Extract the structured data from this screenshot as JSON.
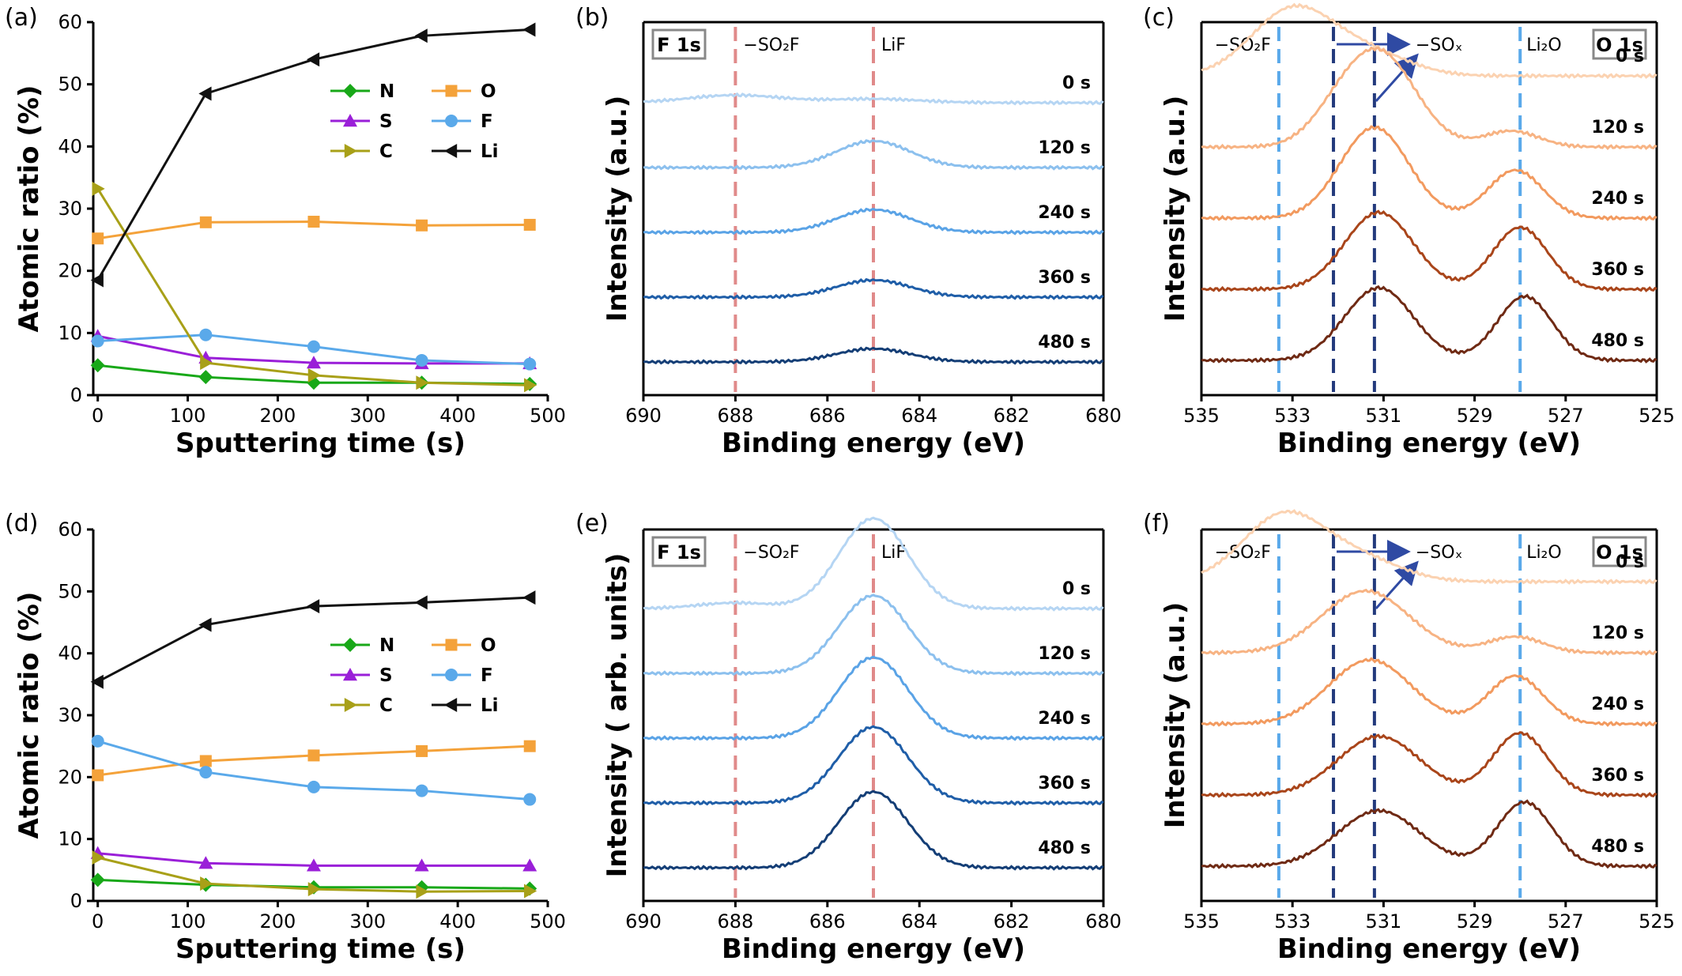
{
  "chart_data": [
    {
      "id": "a",
      "panel_label": "(a)",
      "type": "line",
      "xlabel": "Sputtering time (s)",
      "ylabel": "Atomic ratio (%)",
      "xlim": [
        -5,
        500
      ],
      "ylim": [
        0,
        60
      ],
      "xticks": [
        0,
        100,
        200,
        300,
        400,
        500
      ],
      "yticks": [
        0,
        10,
        20,
        30,
        40,
        50,
        60
      ],
      "x": [
        0,
        120,
        240,
        360,
        480
      ],
      "legend_position": "upper-right",
      "series": [
        {
          "name": "N",
          "color": "#18a818",
          "marker": "diamond",
          "values": [
            4.8,
            2.9,
            2.0,
            2.0,
            1.8
          ]
        },
        {
          "name": "O",
          "color": "#f4a23a",
          "marker": "square",
          "values": [
            25.2,
            27.8,
            27.9,
            27.3,
            27.4
          ]
        },
        {
          "name": "S",
          "color": "#9a1fd8",
          "marker": "triangle-up",
          "values": [
            9.5,
            6.0,
            5.2,
            5.1,
            5.1
          ]
        },
        {
          "name": "F",
          "color": "#5aa9ea",
          "marker": "circle",
          "values": [
            8.7,
            9.7,
            7.8,
            5.6,
            5.0
          ]
        },
        {
          "name": "C",
          "color": "#a8a018",
          "marker": "triangle-right",
          "values": [
            33.2,
            5.2,
            3.2,
            2.0,
            1.6
          ]
        },
        {
          "name": "Li",
          "color": "#111111",
          "marker": "triangle-left",
          "values": [
            18.5,
            48.5,
            54.0,
            57.8,
            58.8
          ]
        }
      ]
    },
    {
      "id": "b",
      "panel_label": "(b)",
      "type": "line",
      "xlabel": "Binding energy (eV)",
      "ylabel": "Intensity (a.u.)",
      "box_label": "F 1s",
      "xlim": [
        690,
        680
      ],
      "xticks": [
        690,
        688,
        686,
        684,
        682,
        680
      ],
      "reference_lines": [
        {
          "x": 688.0,
          "label": "−SO₂F",
          "color": "#e08a8a"
        },
        {
          "x": 685.0,
          "label": "LiF",
          "color": "#e08a8a"
        }
      ],
      "spectra": [
        {
          "name": "0 s",
          "color": "#b5d5f3",
          "offset": 4,
          "peaks": [
            {
              "center": 688.0,
              "height": 0.08,
              "width": 1.0
            },
            {
              "center": 685.0,
              "height": 0.04,
              "width": 1.0
            }
          ]
        },
        {
          "name": "120 s",
          "color": "#8cc0ee",
          "offset": 3,
          "peaks": [
            {
              "center": 685.0,
              "height": 0.28,
              "width": 0.8
            }
          ]
        },
        {
          "name": "240 s",
          "color": "#5aa3e6",
          "offset": 2,
          "peaks": [
            {
              "center": 685.0,
              "height": 0.24,
              "width": 0.8
            }
          ]
        },
        {
          "name": "360 s",
          "color": "#1f5ea8",
          "offset": 1,
          "peaks": [
            {
              "center": 685.0,
              "height": 0.18,
              "width": 0.8
            }
          ]
        },
        {
          "name": "480 s",
          "color": "#143e76",
          "offset": 0,
          "peaks": [
            {
              "center": 685.0,
              "height": 0.14,
              "width": 0.8
            }
          ]
        }
      ]
    },
    {
      "id": "c",
      "panel_label": "(c)",
      "type": "line",
      "xlabel": "Binding energy (eV)",
      "ylabel": "Intensity (a.u.)",
      "box_label": "O 1s",
      "xlim": [
        535,
        525
      ],
      "xticks": [
        535,
        533,
        531,
        529,
        527,
        525
      ],
      "reference_lines": [
        {
          "x": 533.3,
          "label": "−SO₂F",
          "color": "#5aa9ea"
        },
        {
          "x": 532.1,
          "label": "",
          "color": "#233a7c"
        },
        {
          "x": 531.2,
          "label": "−SOₓ",
          "color": "#233a7c"
        },
        {
          "x": 528.0,
          "label": "Li₂O",
          "color": "#5aa9ea"
        }
      ],
      "spectra": [
        {
          "name": "0 s",
          "color": "#fbd2b1",
          "offset": 4,
          "peaks": [
            {
              "center": 533.0,
              "height": 0.62,
              "width": 0.9
            },
            {
              "center": 531.3,
              "height": 0.2,
              "width": 0.9
            }
          ]
        },
        {
          "name": "120 s",
          "color": "#f7b383",
          "offset": 3,
          "peaks": [
            {
              "center": 531.1,
              "height": 0.88,
              "width": 0.8
            },
            {
              "center": 532.1,
              "height": 0.15,
              "width": 0.6
            },
            {
              "center": 528.2,
              "height": 0.15,
              "width": 0.6
            }
          ]
        },
        {
          "name": "240 s",
          "color": "#f29a5f",
          "offset": 2,
          "peaks": [
            {
              "center": 531.2,
              "height": 0.85,
              "width": 0.75
            },
            {
              "center": 528.1,
              "height": 0.45,
              "width": 0.6
            }
          ]
        },
        {
          "name": "360 s",
          "color": "#a9451a",
          "offset": 1,
          "peaks": [
            {
              "center": 531.1,
              "height": 0.72,
              "width": 0.75
            },
            {
              "center": 528.0,
              "height": 0.58,
              "width": 0.6
            }
          ]
        },
        {
          "name": "480 s",
          "color": "#6f2a14",
          "offset": 0,
          "peaks": [
            {
              "center": 531.1,
              "height": 0.68,
              "width": 0.75
            },
            {
              "center": 527.9,
              "height": 0.6,
              "width": 0.6
            }
          ]
        }
      ]
    },
    {
      "id": "d",
      "panel_label": "(d)",
      "type": "line",
      "xlabel": "Sputtering time (s)",
      "ylabel": "Atomic ratio (%)",
      "xlim": [
        -5,
        500
      ],
      "ylim": [
        0,
        60
      ],
      "xticks": [
        0,
        100,
        200,
        300,
        400,
        500
      ],
      "yticks": [
        0,
        10,
        20,
        30,
        40,
        50,
        60
      ],
      "x": [
        0,
        120,
        240,
        360,
        480
      ],
      "legend_position": "right",
      "series": [
        {
          "name": "N",
          "color": "#18a818",
          "marker": "diamond",
          "values": [
            3.4,
            2.6,
            2.2,
            2.2,
            2.0
          ]
        },
        {
          "name": "O",
          "color": "#f4a23a",
          "marker": "square",
          "values": [
            20.3,
            22.6,
            23.5,
            24.2,
            25.0
          ]
        },
        {
          "name": "S",
          "color": "#9a1fd8",
          "marker": "triangle-up",
          "values": [
            7.7,
            6.1,
            5.7,
            5.7,
            5.7
          ]
        },
        {
          "name": "F",
          "color": "#5aa9ea",
          "marker": "circle",
          "values": [
            25.8,
            20.8,
            18.4,
            17.8,
            16.4
          ]
        },
        {
          "name": "C",
          "color": "#a8a018",
          "marker": "triangle-right",
          "values": [
            7.0,
            2.8,
            1.9,
            1.5,
            1.6
          ]
        },
        {
          "name": "Li",
          "color": "#111111",
          "marker": "triangle-left",
          "values": [
            35.4,
            44.6,
            47.6,
            48.2,
            49.0
          ]
        }
      ]
    },
    {
      "id": "e",
      "panel_label": "(e)",
      "type": "line",
      "xlabel": "Binding energy (eV)",
      "ylabel": "Intensity ( arb. units)",
      "box_label": "F 1s",
      "xlim": [
        690,
        680
      ],
      "xticks": [
        690,
        688,
        686,
        684,
        682,
        680
      ],
      "reference_lines": [
        {
          "x": 688.0,
          "label": "−SO₂F",
          "color": "#e08a8a"
        },
        {
          "x": 685.0,
          "label": "LiF",
          "color": "#e08a8a"
        }
      ],
      "spectra": [
        {
          "name": "0 s",
          "color": "#b5d5f3",
          "offset": 4,
          "peaks": [
            {
              "center": 685.0,
              "height": 0.95,
              "width": 0.75
            },
            {
              "center": 688.0,
              "height": 0.06,
              "width": 0.8
            }
          ]
        },
        {
          "name": "120 s",
          "color": "#8cc0ee",
          "offset": 3,
          "peaks": [
            {
              "center": 685.0,
              "height": 0.82,
              "width": 0.75
            }
          ]
        },
        {
          "name": "240 s",
          "color": "#5aa3e6",
          "offset": 2,
          "peaks": [
            {
              "center": 685.0,
              "height": 0.85,
              "width": 0.75
            }
          ]
        },
        {
          "name": "360 s",
          "color": "#1f5ea8",
          "offset": 1,
          "peaks": [
            {
              "center": 685.0,
              "height": 0.8,
              "width": 0.75
            }
          ]
        },
        {
          "name": "480 s",
          "color": "#143e76",
          "offset": 0,
          "peaks": [
            {
              "center": 685.0,
              "height": 0.8,
              "width": 0.75
            }
          ]
        }
      ]
    },
    {
      "id": "f",
      "panel_label": "(f)",
      "type": "line",
      "xlabel": "Binding energy (eV)",
      "ylabel": "Intensity (a.u.)",
      "box_label": "O 1s",
      "xlim": [
        535,
        525
      ],
      "xticks": [
        535,
        533,
        531,
        529,
        527,
        525
      ],
      "reference_lines": [
        {
          "x": 533.3,
          "label": "−SO₂F",
          "color": "#5aa9ea"
        },
        {
          "x": 532.1,
          "label": "",
          "color": "#233a7c"
        },
        {
          "x": 531.2,
          "label": "−SOₓ",
          "color": "#233a7c"
        },
        {
          "x": 528.0,
          "label": "Li₂O",
          "color": "#5aa9ea"
        }
      ],
      "spectra": [
        {
          "name": "0 s",
          "color": "#fbd2b1",
          "offset": 4,
          "peaks": [
            {
              "center": 533.2,
              "height": 0.62,
              "width": 0.9
            },
            {
              "center": 531.5,
              "height": 0.2,
              "width": 0.9
            }
          ]
        },
        {
          "name": "120 s",
          "color": "#f7b383",
          "offset": 3,
          "peaks": [
            {
              "center": 531.4,
              "height": 0.58,
              "width": 0.95
            },
            {
              "center": 528.1,
              "height": 0.15,
              "width": 0.6
            }
          ]
        },
        {
          "name": "240 s",
          "color": "#f29a5f",
          "offset": 2,
          "peaks": [
            {
              "center": 531.3,
              "height": 0.6,
              "width": 0.9
            },
            {
              "center": 528.1,
              "height": 0.45,
              "width": 0.6
            }
          ]
        },
        {
          "name": "360 s",
          "color": "#a9451a",
          "offset": 1,
          "peaks": [
            {
              "center": 531.1,
              "height": 0.55,
              "width": 0.9
            },
            {
              "center": 528.0,
              "height": 0.58,
              "width": 0.6
            }
          ]
        },
        {
          "name": "480 s",
          "color": "#6f2a14",
          "offset": 0,
          "peaks": [
            {
              "center": 531.1,
              "height": 0.52,
              "width": 0.9
            },
            {
              "center": 527.9,
              "height": 0.6,
              "width": 0.6
            }
          ]
        }
      ]
    }
  ]
}
